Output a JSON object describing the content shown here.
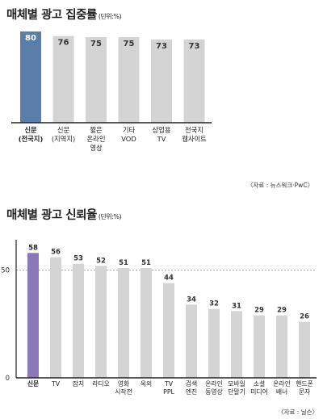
{
  "charts": [
    {
      "title": "매체별 광고 집중률",
      "unit": "(단위:%)",
      "source": "〈자료 : 뉴스워크·PwC〉",
      "chart_data": {
        "type": "bar",
        "categories": [
          {
            "lines": [
              "신문",
              "(전국지)"
            ]
          },
          {
            "lines": [
              "신문",
              "(지역지)"
            ]
          },
          {
            "lines": [
              "짧은",
              "온라인",
              "영상"
            ]
          },
          {
            "lines": [
              "기타",
              "VOD"
            ]
          },
          {
            "lines": [
              "상업용",
              "TV"
            ]
          },
          {
            "lines": [
              "전국지",
              "웹사이트"
            ]
          }
        ],
        "values": [
          80,
          76,
          75,
          75,
          73,
          73
        ],
        "value_labels": [
          "80",
          "76",
          "75",
          "75",
          "73",
          "73"
        ],
        "highlight_index": 0,
        "ylim": [
          0,
          80
        ],
        "colors": {
          "highlight": "#5b7ea8",
          "bar": "#d4d4d4"
        }
      }
    },
    {
      "title": "매체별 광고 신뢰율",
      "unit": "(단위:%)",
      "source": "〈자료 : 닐슨〉",
      "chart_data": {
        "type": "bar",
        "categories": [
          {
            "lines": [
              "신문"
            ]
          },
          {
            "lines": [
              "TV"
            ]
          },
          {
            "lines": [
              "잡지"
            ]
          },
          {
            "lines": [
              "라디오"
            ]
          },
          {
            "lines": [
              "영화",
              "시작전"
            ]
          },
          {
            "lines": [
              "옥외"
            ]
          },
          {
            "lines": [
              "TV",
              "PPL"
            ]
          },
          {
            "lines": [
              "검색",
              "엔진"
            ]
          },
          {
            "lines": [
              "온라인",
              "동영상"
            ]
          },
          {
            "lines": [
              "모바일",
              "단말기"
            ]
          },
          {
            "lines": [
              "소셜",
              "미디어"
            ]
          },
          {
            "lines": [
              "온라인",
              "배너"
            ]
          },
          {
            "lines": [
              "핸드폰",
              "문자"
            ]
          }
        ],
        "values": [
          58,
          56,
          53,
          52,
          51,
          51,
          44,
          34,
          32,
          31,
          29,
          29,
          26
        ],
        "value_labels": [
          "58",
          "56",
          "53",
          "52",
          "51",
          "51",
          "44",
          "34",
          "32",
          "31",
          "29",
          "29",
          "26"
        ],
        "highlight_index": 0,
        "ylim": [
          0,
          60
        ],
        "yticks": [
          {
            "value": 0,
            "label": "0"
          },
          {
            "value": 50,
            "label": "50"
          }
        ],
        "colors": {
          "highlight": "#8a78b8",
          "bar": "#d4d4d4",
          "gridline": "#999999"
        }
      }
    }
  ]
}
